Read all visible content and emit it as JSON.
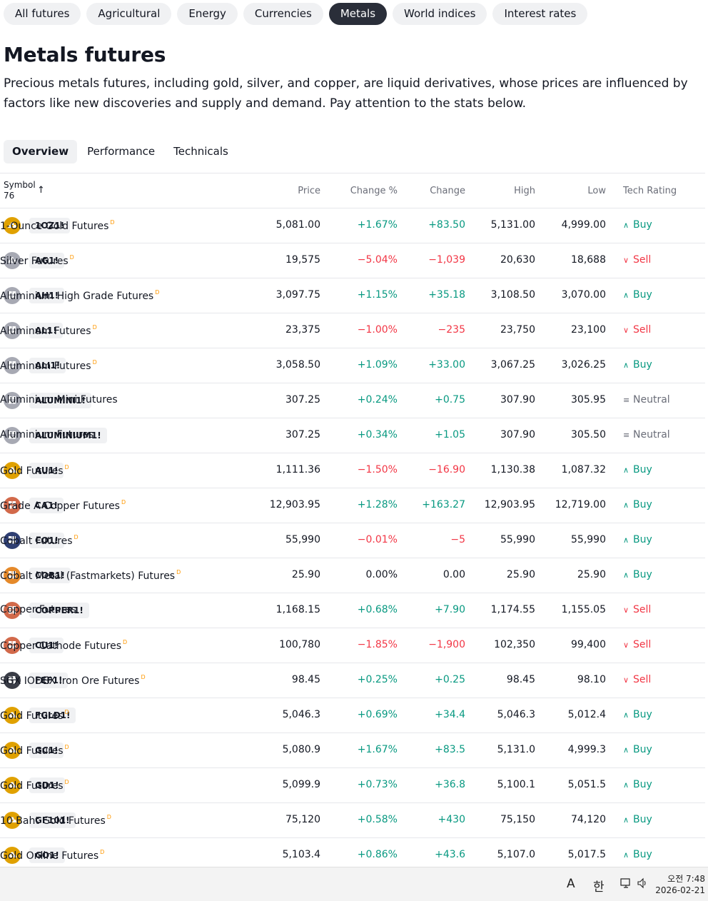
{
  "categories": [
    "All futures",
    "Agricultural",
    "Energy",
    "Currencies",
    "Metals",
    "World indices",
    "Interest rates"
  ],
  "active_category": "Metals",
  "page": {
    "title": "Metals futures",
    "description": "Precious metals futures, including gold, silver, and copper, are liquid derivatives, whose prices are influenced by factors like new discoveries and supply and demand. Pay attention to the stats below."
  },
  "tabs": [
    "Overview",
    "Performance",
    "Technicals"
  ],
  "active_tab": "Overview",
  "table": {
    "symbol_header": "Symbol",
    "symbol_count": "76",
    "sort_icon": "arrow-up-icon",
    "columns": {
      "price": "Price",
      "change_pct": "Change %",
      "change": "Change",
      "high": "High",
      "low": "Low",
      "rating": "Tech Rating"
    },
    "rows": [
      {
        "symbol": "1OZ1!",
        "name": "1-Ounce Gold Futures",
        "delayed": "D",
        "logo": "gold-bars-icon",
        "logo_color": "#e0a100",
        "price": "5,081.00",
        "change_pct": "+1.67%",
        "change": "+83.50",
        "high": "5,131.00",
        "low": "4,999.00",
        "rating": "Buy"
      },
      {
        "symbol": "AG1!",
        "name": "Silver Futures",
        "delayed": "D",
        "logo": "silver-bars-icon",
        "logo_color": "#a7a9b3",
        "price": "19,575",
        "change_pct": "−5.04%",
        "change": "−1,039",
        "high": "20,630",
        "low": "18,688",
        "rating": "Sell"
      },
      {
        "symbol": "AH1!",
        "name": "Aluminium High Grade Futures",
        "delayed": "D",
        "logo": "aluminium-blocks-icon",
        "logo_color": "#a7a9b3",
        "price": "3,097.75",
        "change_pct": "+1.15%",
        "change": "+35.18",
        "high": "3,108.50",
        "low": "3,070.00",
        "rating": "Buy"
      },
      {
        "symbol": "AL1!",
        "name": "Aluminum Futures",
        "delayed": "D",
        "logo": "aluminium-blocks-icon",
        "logo_color": "#a7a9b3",
        "price": "23,375",
        "change_pct": "−1.00%",
        "change": "−235",
        "high": "23,750",
        "low": "23,100",
        "rating": "Sell"
      },
      {
        "symbol": "ALI1!",
        "name": "Aluminum Futures",
        "delayed": "D",
        "logo": "aluminium-blocks-icon",
        "logo_color": "#a7a9b3",
        "price": "3,058.50",
        "change_pct": "+1.09%",
        "change": "+33.00",
        "high": "3,067.25",
        "low": "3,026.25",
        "rating": "Buy"
      },
      {
        "symbol": "ALUMINI1!",
        "name": "Aluminium Mini Futures",
        "delayed": "",
        "logo": "aluminium-blocks-icon",
        "logo_color": "#a7a9b3",
        "price": "307.25",
        "change_pct": "+0.24%",
        "change": "+0.75",
        "high": "307.90",
        "low": "305.95",
        "rating": "Neutral"
      },
      {
        "symbol": "ALUMINIUM1!",
        "name": "Aluminium Futures",
        "delayed": "",
        "logo": "aluminium-blocks-icon",
        "logo_color": "#a7a9b3",
        "price": "307.25",
        "change_pct": "+0.34%",
        "change": "+1.05",
        "high": "307.90",
        "low": "305.50",
        "rating": "Neutral"
      },
      {
        "symbol": "AU1!",
        "name": "Gold Futures",
        "delayed": "D",
        "logo": "gold-bars-icon",
        "logo_color": "#e0a100",
        "price": "1,111.36",
        "change_pct": "−1.50%",
        "change": "−16.90",
        "high": "1,130.38",
        "low": "1,087.32",
        "rating": "Buy"
      },
      {
        "symbol": "CA1!",
        "name": "Grade A Copper Futures",
        "delayed": "D",
        "logo": "copper-blocks-icon",
        "logo_color": "#d2694a",
        "price": "12,903.95",
        "change_pct": "+1.28%",
        "change": "+163.27",
        "high": "12,903.95",
        "low": "12,719.00",
        "rating": "Buy"
      },
      {
        "symbol": "CO1!",
        "name": "Cobalt Futures",
        "delayed": "D",
        "logo": "cobalt-blocks-icon",
        "logo_color": "#2f3f73",
        "price": "55,990",
        "change_pct": "−0.01%",
        "change": "−5",
        "high": "55,990",
        "low": "55,990",
        "rating": "Buy"
      },
      {
        "symbol": "COB1!",
        "name": "Cobalt Metal (Fastmarkets) Futures",
        "delayed": "D",
        "logo": "metal-blocks-icon",
        "logo_color": "#e5892a",
        "price": "25.90",
        "change_pct": "0.00%",
        "change": "0.00",
        "high": "25.90",
        "low": "25.90",
        "rating": "Buy"
      },
      {
        "symbol": "COPPER1!",
        "name": "Copper Futures",
        "delayed": "",
        "logo": "copper-blocks-icon",
        "logo_color": "#d2694a",
        "price": "1,168.15",
        "change_pct": "+0.68%",
        "change": "+7.90",
        "high": "1,174.55",
        "low": "1,155.05",
        "rating": "Sell"
      },
      {
        "symbol": "CU1!",
        "name": "Copper Cathode Futures",
        "delayed": "D",
        "logo": "copper-blocks-icon",
        "logo_color": "#d2694a",
        "price": "100,780",
        "change_pct": "−1.85%",
        "change": "−1,900",
        "high": "102,350",
        "low": "99,400",
        "rating": "Sell"
      },
      {
        "symbol": "FEF1!",
        "name": "SGX IODEX Iron Ore Futures",
        "delayed": "D",
        "logo": "iron-blocks-icon",
        "logo_color": "#3a3d47",
        "price": "98.45",
        "change_pct": "+0.25%",
        "change": "+0.25",
        "high": "98.45",
        "low": "98.10",
        "rating": "Sell"
      },
      {
        "symbol": "FGLD1!",
        "name": "Gold Futures",
        "delayed": "D",
        "logo": "gold-bars-icon",
        "logo_color": "#e0a100",
        "price": "5,046.3",
        "change_pct": "+0.69%",
        "change": "+34.4",
        "high": "5,046.3",
        "low": "5,012.4",
        "rating": "Buy"
      },
      {
        "symbol": "GC1!",
        "name": "Gold Futures",
        "delayed": "D",
        "logo": "gold-bars-icon",
        "logo_color": "#e0a100",
        "price": "5,080.9",
        "change_pct": "+1.67%",
        "change": "+83.5",
        "high": "5,131.0",
        "low": "4,999.3",
        "rating": "Buy"
      },
      {
        "symbol": "GD1!",
        "name": "Gold Futures",
        "delayed": "D",
        "logo": "gold-bars-icon",
        "logo_color": "#e0a100",
        "price": "5,099.9",
        "change_pct": "+0.73%",
        "change": "+36.8",
        "high": "5,100.1",
        "low": "5,051.5",
        "rating": "Buy"
      },
      {
        "symbol": "GF101!",
        "name": "10 Baht Gold Futures",
        "delayed": "D",
        "logo": "gold-bars-icon",
        "logo_color": "#e0a100",
        "price": "75,120",
        "change_pct": "+0.58%",
        "change": "+430",
        "high": "75,150",
        "low": "74,120",
        "rating": "Buy"
      },
      {
        "symbol": "GO1!",
        "name": "Gold Online Futures",
        "delayed": "D",
        "logo": "gold-bars-icon",
        "logo_color": "#e0a100",
        "price": "5,103.4",
        "change_pct": "+0.86%",
        "change": "+43.6",
        "high": "5,107.0",
        "low": "5,017.5",
        "rating": "Buy"
      }
    ]
  },
  "colors": {
    "positive": "#089981",
    "negative": "#f23645",
    "active_pill": "#2a2e39"
  },
  "taskbar": {
    "ime_mode": "A",
    "ime_lang": "한",
    "time": "오전 7:48",
    "date": "2026-02-21"
  }
}
